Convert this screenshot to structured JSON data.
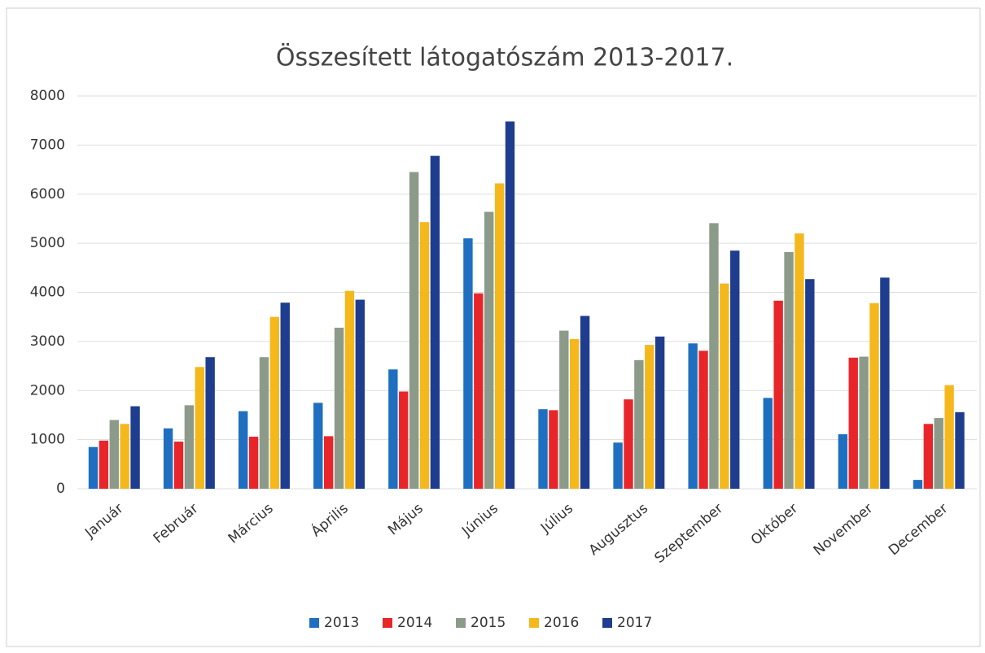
{
  "chart_data": {
    "type": "bar",
    "title": "Összesített látogatószám 2013-2017.",
    "categories": [
      "Január",
      "Február",
      "Március",
      "Április",
      "Május",
      "Június",
      "Július",
      "Augusztus",
      "Szeptember",
      "Október",
      "November",
      "December"
    ],
    "series": [
      {
        "name": "2013",
        "color": "#1f6fc0",
        "values": [
          850,
          1230,
          1580,
          1750,
          2430,
          5100,
          1620,
          940,
          2960,
          1850,
          1110,
          180
        ]
      },
      {
        "name": "2014",
        "color": "#e8262a",
        "values": [
          980,
          960,
          1060,
          1070,
          1980,
          3980,
          1600,
          1820,
          2810,
          3830,
          2670,
          1320
        ]
      },
      {
        "name": "2015",
        "color": "#8c9a8a",
        "values": [
          1400,
          1700,
          2680,
          3280,
          6450,
          5640,
          3220,
          2620,
          5410,
          4820,
          2690,
          1440
        ]
      },
      {
        "name": "2016",
        "color": "#f5b81c",
        "values": [
          1320,
          2480,
          3500,
          4030,
          5430,
          6220,
          3050,
          2930,
          4180,
          5200,
          3780,
          2110
        ]
      },
      {
        "name": "2017",
        "color": "#1f3d8f",
        "values": [
          1680,
          2680,
          3790,
          3850,
          6780,
          7480,
          3520,
          3100,
          4850,
          4270,
          4300,
          1560
        ]
      }
    ],
    "ylim": [
      0,
      8000
    ],
    "yticks": [
      0,
      1000,
      2000,
      3000,
      4000,
      5000,
      6000,
      7000,
      8000
    ],
    "grid": true,
    "legend": "bottom"
  }
}
